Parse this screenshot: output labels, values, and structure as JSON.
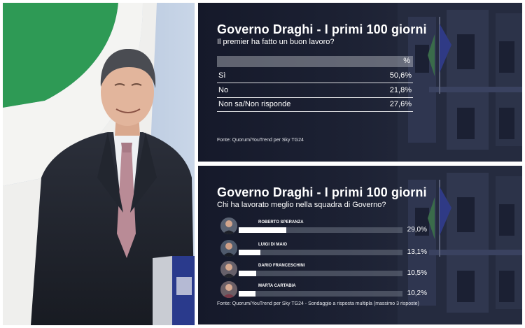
{
  "chart_data": [
    {
      "type": "table",
      "title": "Governo Draghi - I primi 100 giorni",
      "subtitle": "Il premier ha fatto un buon lavoro?",
      "column_header": "%",
      "categories": [
        "Sì",
        "No",
        "Non sa/Non risponde"
      ],
      "value_labels": [
        "50,6%",
        "21,8%",
        "27,6%"
      ],
      "values": [
        50.6,
        21.8,
        27.6
      ],
      "source": "Fonte: Quorum/YouTrend per Sky TG24"
    },
    {
      "type": "bar",
      "orientation": "horizontal",
      "title": "Governo Draghi - I primi 100 giorni",
      "subtitle": "Chi ha lavorato meglio nella squadra di Governo?",
      "categories": [
        "ROBERTO SPERANZA",
        "LUIGI DI MAIO",
        "DARIO FRANCESCHINI",
        "MARTA CARTABIA"
      ],
      "value_labels": [
        "29,0%",
        "13,1%",
        "10,5%",
        "10,2%"
      ],
      "values": [
        29.0,
        13.1,
        10.5,
        10.2
      ],
      "xlim": [
        0,
        100
      ],
      "source": "Fonte: Quorum/YouTrend per Sky TG24 - Sondaggio a risposta multipla (massimo 3 risposte)"
    }
  ]
}
